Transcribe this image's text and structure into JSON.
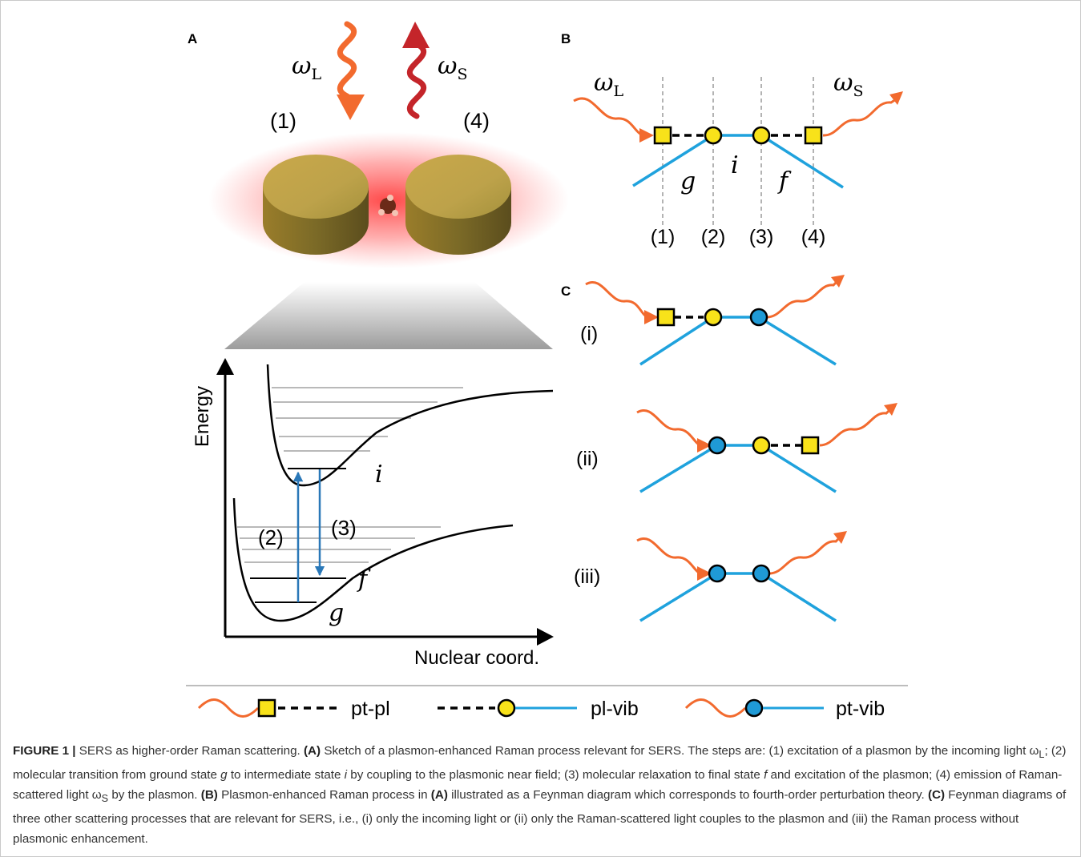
{
  "panels": {
    "a": "A",
    "b": "B",
    "c": "C"
  },
  "panel_a": {
    "omega_l": "ω",
    "omega_l_sub": "L",
    "omega_s": "ω",
    "omega_s_sub": "S",
    "step1": "(1)",
    "step4": "(4)",
    "ylabel": "Energy",
    "xlabel": "Nuclear coord.",
    "state_i": "i",
    "state_f": "f",
    "state_g": "g",
    "step2": "(2)",
    "step3": "(3)"
  },
  "panel_b": {
    "omega_l": "ω",
    "omega_l_sub": "L",
    "omega_s": "ω",
    "omega_s_sub": "S",
    "g": "g",
    "i": "i",
    "f": "f",
    "ticks": [
      "(1)",
      "(2)",
      "(3)",
      "(4)"
    ]
  },
  "panel_c": {
    "rows": [
      "(i)",
      "(ii)",
      "(iii)"
    ]
  },
  "legend": {
    "pt_pl": "pt-pl",
    "pl_vib": "pl-vib",
    "pt_vib": "pt-vib"
  },
  "colors": {
    "photon": "#f26a2e",
    "photon_scattered": "#c4252a",
    "vibration_line": "#1fa2dd",
    "plasmon_node": "#f8e21a",
    "vib_node": "#1f9ad6",
    "arrow_blue": "#2a78b8"
  },
  "caption": {
    "label": "FIGURE 1 |",
    "s1": " SERS as higher-order Raman scattering. ",
    "A1": "(A)",
    "s2": " Sketch of a plasmon-enhanced Raman process relevant for SERS. The steps are: (1) excitation of a plasmon by the incoming light ω",
    "s2_sub": "L",
    "s3": "; (2) molecular transition from ground state ",
    "g": "g",
    "s4": " to intermediate state ",
    "i": "i",
    "s5": " by coupling to the plasmonic near field; (3) molecular relaxation to final state ",
    "f": "f",
    "s6": " and excitation of the plasmon; (4) emission of Raman-scattered light ω",
    "s6_sub": "S",
    "s7": " by the plasmon. ",
    "B": "(B)",
    "s8": " Plasmon-enhanced Raman process in ",
    "A2": "(A)",
    "s9": " illustrated as a Feynman diagram which corresponds to fourth-order perturbation theory. ",
    "C": "(C)",
    "s10": " Feynman diagrams of three other scattering processes that are relevant for SERS, i.e., (i) only the incoming light or (ii) only the Raman-scattered light couples to the plasmon and (iii) the Raman process without plasmonic enhancement."
  }
}
